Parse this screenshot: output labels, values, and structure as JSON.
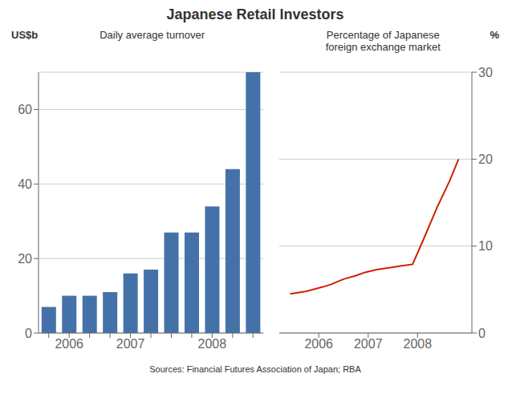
{
  "title": "Japanese Retail Investors",
  "annotations": [
    "Sources: Financial Futures Association of Japan; RBA"
  ],
  "chart_data": [
    {
      "type": "bar",
      "title": "Daily average turnover",
      "ylabel": "US$b",
      "categories": [
        null,
        "2006",
        null,
        null,
        "2007",
        null,
        null,
        null,
        "2008",
        null,
        null
      ],
      "values": [
        7,
        10,
        10,
        11,
        16,
        17,
        27,
        27,
        34,
        44,
        70
      ],
      "color": "#4472A8",
      "ylim": [
        0,
        70
      ],
      "yticks": [
        0,
        20,
        40,
        60
      ],
      "grid": true
    },
    {
      "type": "line",
      "title": "Percentage of Japanese\nforeign exchange market",
      "ylabel": "%",
      "x": [
        2005.42,
        2005.75,
        2006.08,
        2006.25,
        2006.5,
        2006.75,
        2006.95,
        2007.17,
        2007.42,
        2007.65,
        2007.9,
        2008.1,
        2008.4,
        2008.65,
        2008.83
      ],
      "values": [
        4.5,
        4.8,
        5.3,
        5.6,
        6.2,
        6.6,
        7.0,
        7.3,
        7.5,
        7.7,
        7.9,
        10.5,
        14.5,
        17.5,
        20.0
      ],
      "color": "#CC2200",
      "xlim": [
        2005.2,
        2009.1
      ],
      "xticks": [
        2006,
        2007,
        2008
      ],
      "ylim": [
        0,
        30
      ],
      "yticks": [
        0,
        10,
        20,
        30
      ],
      "grid": true
    }
  ]
}
